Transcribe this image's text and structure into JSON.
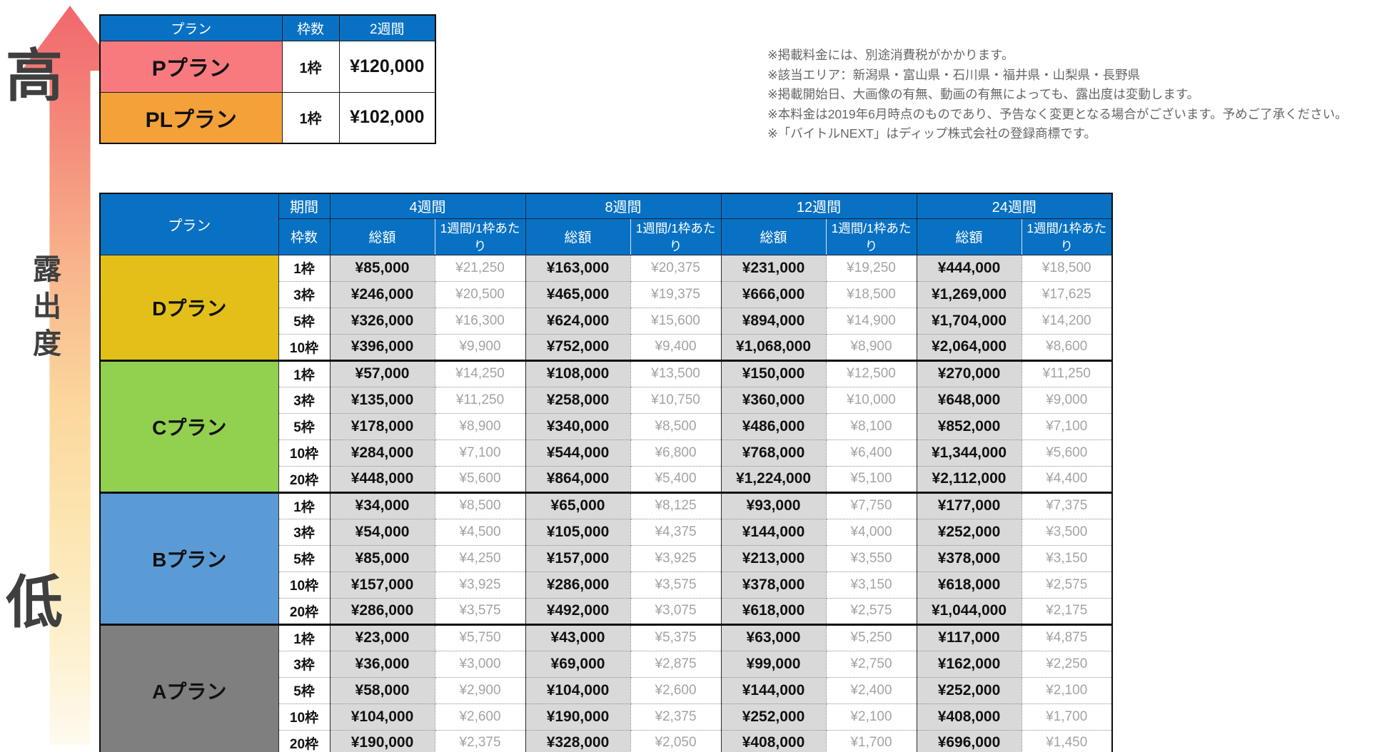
{
  "axis": {
    "high_label": "高",
    "axis_label": "露出度",
    "low_label": "低"
  },
  "notes": [
    "※掲載料金には、別途消費税がかかります。",
    "※該当エリア：新潟県・富山県・石川県・福井県・山梨県・長野県",
    "※掲載開始日、大画像の有無、動画の有無によっても、露出度は変動します。",
    "※本料金は2019年6月時点のものであり、予告なく変更となる場合がございます。予めご了承ください。",
    "※「バイトルNEXT」はディップ株式会社の登録商標です。"
  ],
  "premium_table": {
    "headers": {
      "plan": "プラン",
      "slots": "枠数",
      "period": "2週間"
    },
    "rows": [
      {
        "plan": "Pプラン",
        "color": "#f87a7f",
        "slots": "1枠",
        "price": "¥120,000"
      },
      {
        "plan": "PLプラン",
        "color": "#f5a13a",
        "slots": "1枠",
        "price": "¥102,000"
      }
    ]
  },
  "main_table": {
    "headers": {
      "plan": "プラン",
      "period": "期間",
      "slots": "枠数",
      "total": "総額",
      "per_week": "1週間/1枠あたり",
      "periods": [
        "4週間",
        "8週間",
        "12週間",
        "24週間"
      ]
    },
    "plans": [
      {
        "name": "Dプラン",
        "color": "#e3bf1a",
        "rows": [
          {
            "slots": "1枠",
            "cells": [
              [
                "¥85,000",
                "¥21,250"
              ],
              [
                "¥163,000",
                "¥20,375"
              ],
              [
                "¥231,000",
                "¥19,250"
              ],
              [
                "¥444,000",
                "¥18,500"
              ]
            ]
          },
          {
            "slots": "3枠",
            "cells": [
              [
                "¥246,000",
                "¥20,500"
              ],
              [
                "¥465,000",
                "¥19,375"
              ],
              [
                "¥666,000",
                "¥18,500"
              ],
              [
                "¥1,269,000",
                "¥17,625"
              ]
            ]
          },
          {
            "slots": "5枠",
            "cells": [
              [
                "¥326,000",
                "¥16,300"
              ],
              [
                "¥624,000",
                "¥15,600"
              ],
              [
                "¥894,000",
                "¥14,900"
              ],
              [
                "¥1,704,000",
                "¥14,200"
              ]
            ]
          },
          {
            "slots": "10枠",
            "cells": [
              [
                "¥396,000",
                "¥9,900"
              ],
              [
                "¥752,000",
                "¥9,400"
              ],
              [
                "¥1,068,000",
                "¥8,900"
              ],
              [
                "¥2,064,000",
                "¥8,600"
              ]
            ]
          }
        ]
      },
      {
        "name": "Cプラン",
        "color": "#92d050",
        "rows": [
          {
            "slots": "1枠",
            "cells": [
              [
                "¥57,000",
                "¥14,250"
              ],
              [
                "¥108,000",
                "¥13,500"
              ],
              [
                "¥150,000",
                "¥12,500"
              ],
              [
                "¥270,000",
                "¥11,250"
              ]
            ]
          },
          {
            "slots": "3枠",
            "cells": [
              [
                "¥135,000",
                "¥11,250"
              ],
              [
                "¥258,000",
                "¥10,750"
              ],
              [
                "¥360,000",
                "¥10,000"
              ],
              [
                "¥648,000",
                "¥9,000"
              ]
            ]
          },
          {
            "slots": "5枠",
            "cells": [
              [
                "¥178,000",
                "¥8,900"
              ],
              [
                "¥340,000",
                "¥8,500"
              ],
              [
                "¥486,000",
                "¥8,100"
              ],
              [
                "¥852,000",
                "¥7,100"
              ]
            ]
          },
          {
            "slots": "10枠",
            "cells": [
              [
                "¥284,000",
                "¥7,100"
              ],
              [
                "¥544,000",
                "¥6,800"
              ],
              [
                "¥768,000",
                "¥6,400"
              ],
              [
                "¥1,344,000",
                "¥5,600"
              ]
            ]
          },
          {
            "slots": "20枠",
            "cells": [
              [
                "¥448,000",
                "¥5,600"
              ],
              [
                "¥864,000",
                "¥5,400"
              ],
              [
                "¥1,224,000",
                "¥5,100"
              ],
              [
                "¥2,112,000",
                "¥4,400"
              ]
            ]
          }
        ]
      },
      {
        "name": "Bプラン",
        "color": "#5b9bd5",
        "rows": [
          {
            "slots": "1枠",
            "cells": [
              [
                "¥34,000",
                "¥8,500"
              ],
              [
                "¥65,000",
                "¥8,125"
              ],
              [
                "¥93,000",
                "¥7,750"
              ],
              [
                "¥177,000",
                "¥7,375"
              ]
            ]
          },
          {
            "slots": "3枠",
            "cells": [
              [
                "¥54,000",
                "¥4,500"
              ],
              [
                "¥105,000",
                "¥4,375"
              ],
              [
                "¥144,000",
                "¥4,000"
              ],
              [
                "¥252,000",
                "¥3,500"
              ]
            ]
          },
          {
            "slots": "5枠",
            "cells": [
              [
                "¥85,000",
                "¥4,250"
              ],
              [
                "¥157,000",
                "¥3,925"
              ],
              [
                "¥213,000",
                "¥3,550"
              ],
              [
                "¥378,000",
                "¥3,150"
              ]
            ]
          },
          {
            "slots": "10枠",
            "cells": [
              [
                "¥157,000",
                "¥3,925"
              ],
              [
                "¥286,000",
                "¥3,575"
              ],
              [
                "¥378,000",
                "¥3,150"
              ],
              [
                "¥618,000",
                "¥2,575"
              ]
            ]
          },
          {
            "slots": "20枠",
            "cells": [
              [
                "¥286,000",
                "¥3,575"
              ],
              [
                "¥492,000",
                "¥3,075"
              ],
              [
                "¥618,000",
                "¥2,575"
              ],
              [
                "¥1,044,000",
                "¥2,175"
              ]
            ]
          }
        ]
      },
      {
        "name": "Aプラン",
        "color": "#7f7f7f",
        "rows": [
          {
            "slots": "1枠",
            "cells": [
              [
                "¥23,000",
                "¥5,750"
              ],
              [
                "¥43,000",
                "¥5,375"
              ],
              [
                "¥63,000",
                "¥5,250"
              ],
              [
                "¥117,000",
                "¥4,875"
              ]
            ]
          },
          {
            "slots": "3枠",
            "cells": [
              [
                "¥36,000",
                "¥3,000"
              ],
              [
                "¥69,000",
                "¥2,875"
              ],
              [
                "¥99,000",
                "¥2,750"
              ],
              [
                "¥162,000",
                "¥2,250"
              ]
            ]
          },
          {
            "slots": "5枠",
            "cells": [
              [
                "¥58,000",
                "¥2,900"
              ],
              [
                "¥104,000",
                "¥2,600"
              ],
              [
                "¥144,000",
                "¥2,400"
              ],
              [
                "¥252,000",
                "¥2,100"
              ]
            ]
          },
          {
            "slots": "10枠",
            "cells": [
              [
                "¥104,000",
                "¥2,600"
              ],
              [
                "¥190,000",
                "¥2,375"
              ],
              [
                "¥252,000",
                "¥2,100"
              ],
              [
                "¥408,000",
                "¥1,700"
              ]
            ]
          },
          {
            "slots": "20枠",
            "cells": [
              [
                "¥190,000",
                "¥2,375"
              ],
              [
                "¥328,000",
                "¥2,050"
              ],
              [
                "¥408,000",
                "¥1,700"
              ],
              [
                "¥696,000",
                "¥1,450"
              ]
            ]
          }
        ]
      }
    ]
  },
  "colors": {
    "header_blue": "#0971c3",
    "total_cell_bg": "#d9d9d9",
    "per_week_text": "#a3a3a3",
    "plan_p": "#f87a7f",
    "plan_pl": "#f5a13a",
    "plan_d": "#e3bf1a",
    "plan_c": "#92d050",
    "plan_b": "#5b9bd5",
    "plan_a": "#7f7f7f"
  }
}
